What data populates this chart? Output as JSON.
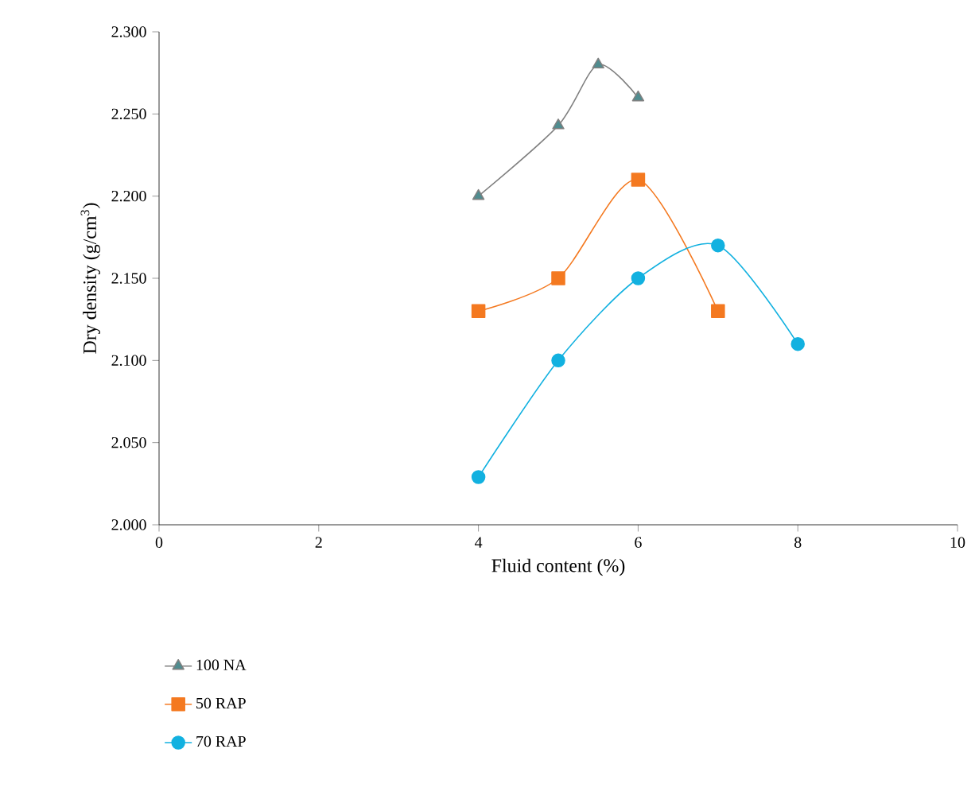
{
  "chart_data": {
    "type": "line",
    "xlabel": "Fluid content (%)",
    "ylabel": "Dry density (g/cm$^{3}$)",
    "xlim": [
      0,
      10
    ],
    "xticks": [
      0,
      2,
      4,
      6,
      8,
      10
    ],
    "ylim": [
      2.0,
      2.3
    ],
    "yticks": [
      {
        "value": 2.0,
        "label": "2.000"
      },
      {
        "value": 2.05,
        "label": "2.050"
      },
      {
        "value": 2.1,
        "label": "2.100"
      },
      {
        "value": 2.15,
        "label": "2.150"
      },
      {
        "value": 2.2,
        "label": "2.200"
      },
      {
        "value": 2.25,
        "label": "2.250"
      },
      {
        "value": 2.3,
        "label": "2.300"
      }
    ],
    "grid": false,
    "legend": "bottom",
    "line_style": "solid",
    "series": [
      {
        "name": "100 NA",
        "color": "#4f8c8f",
        "marker": "triangle",
        "x": [
          4,
          5,
          5.5,
          6
        ],
        "values": [
          2.2,
          2.243,
          2.28,
          2.26
        ]
      },
      {
        "name": "50 RAP",
        "color": "#f47920",
        "marker": "square",
        "x": [
          4,
          5,
          6,
          7
        ],
        "values": [
          2.13,
          2.15,
          2.21,
          2.13
        ]
      },
      {
        "name": "70 RAP",
        "color": "#12b1e0",
        "marker": "circle",
        "x": [
          4,
          5,
          6,
          7,
          8
        ],
        "values": [
          2.029,
          2.1,
          2.15,
          2.17,
          2.11
        ]
      }
    ]
  }
}
